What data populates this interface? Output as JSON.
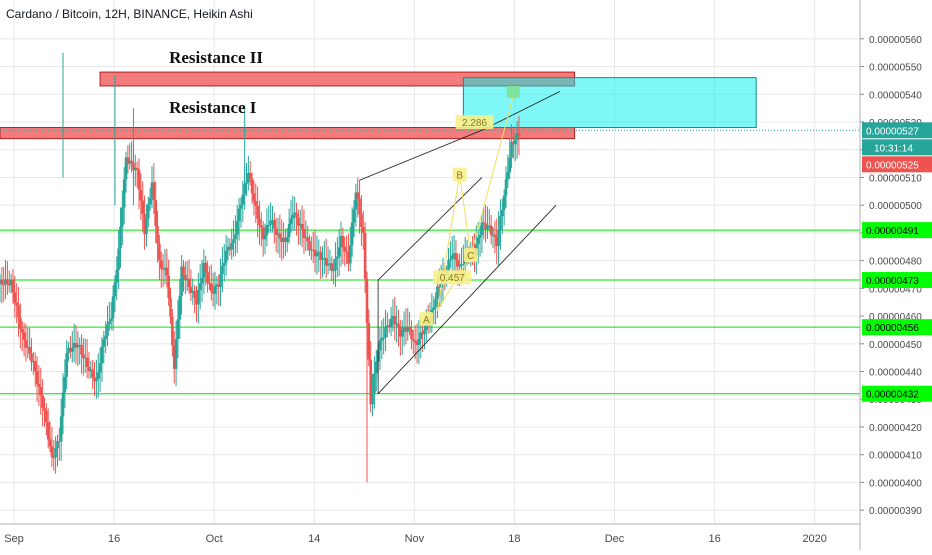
{
  "chart_data": {
    "type": "candlestick",
    "title": "Cardano / Bitcoin, 12H, BINANCE, Heikin Ashi",
    "x_ticks": [
      "Sep",
      "16",
      "Oct",
      "14",
      "Nov",
      "18",
      "Dec",
      "16",
      "2020"
    ],
    "y_ticks": [
      "0.00000560",
      "0.00000550",
      "0.00000540",
      "0.00000530",
      "0.00000520",
      "0.00000510",
      "0.00000500",
      "0.00000490",
      "0.00000480",
      "0.00000470",
      "0.00000460",
      "0.00000450",
      "0.00000440",
      "0.00000430",
      "0.00000420",
      "0.00000410",
      "0.00000400",
      "0.00000390"
    ],
    "y_tick_values": [
      5.6,
      5.5,
      5.4,
      5.3,
      5.2,
      5.1,
      5.0,
      4.9,
      4.8,
      4.7,
      4.6,
      4.5,
      4.4,
      4.3,
      4.2,
      4.1,
      4.0,
      3.9
    ],
    "ylim": [
      3.85,
      5.74
    ],
    "xlim": [
      0,
      232
    ],
    "y_unit_note": "values x 1e-6 BTC",
    "candle_anchors": [
      [
        0,
        4.72
      ],
      [
        3,
        4.7
      ],
      [
        6,
        4.52
      ],
      [
        9,
        4.44
      ],
      [
        12,
        4.27
      ],
      [
        14,
        4.09
      ],
      [
        16,
        4.15
      ],
      [
        18,
        4.45
      ],
      [
        21,
        4.49
      ],
      [
        24,
        4.42
      ],
      [
        26,
        4.38
      ],
      [
        28,
        4.53
      ],
      [
        30,
        4.6
      ],
      [
        32,
        4.82
      ],
      [
        34,
        5.15
      ],
      [
        37,
        5.12
      ],
      [
        39,
        4.92
      ],
      [
        41,
        5.1
      ],
      [
        43,
        4.8
      ],
      [
        45,
        4.75
      ],
      [
        47,
        4.4
      ],
      [
        49,
        4.75
      ],
      [
        51,
        4.7
      ],
      [
        53,
        4.66
      ],
      [
        55,
        4.8
      ],
      [
        57,
        4.7
      ],
      [
        59,
        4.72
      ],
      [
        61,
        4.82
      ],
      [
        63,
        4.85
      ],
      [
        65,
        5.0
      ],
      [
        67,
        5.12
      ],
      [
        69,
        5.0
      ],
      [
        71,
        4.9
      ],
      [
        73,
        4.96
      ],
      [
        75,
        4.88
      ],
      [
        77,
        4.85
      ],
      [
        79,
        4.96
      ],
      [
        81,
        4.92
      ],
      [
        84,
        4.85
      ],
      [
        86,
        4.84
      ],
      [
        88,
        4.8
      ],
      [
        90,
        4.76
      ],
      [
        92,
        4.86
      ],
      [
        94,
        4.78
      ],
      [
        96,
        5.05
      ],
      [
        98,
        4.9
      ],
      [
        100,
        4.3
      ],
      [
        102,
        4.5
      ],
      [
        104,
        4.55
      ],
      [
        106,
        4.58
      ],
      [
        108,
        4.52
      ],
      [
        110,
        4.55
      ],
      [
        112,
        4.5
      ],
      [
        114,
        4.56
      ],
      [
        116,
        4.6
      ],
      [
        118,
        4.7
      ],
      [
        120,
        4.74
      ],
      [
        122,
        4.81
      ],
      [
        124,
        4.76
      ],
      [
        126,
        4.82
      ],
      [
        128,
        4.84
      ],
      [
        130,
        4.95
      ],
      [
        132,
        4.93
      ],
      [
        134,
        4.86
      ],
      [
        136,
        5.02
      ],
      [
        138,
        5.2
      ],
      [
        140,
        5.25
      ]
    ],
    "horizontal_levels": [
      {
        "price": 4.91,
        "label": "0.00000491"
      },
      {
        "price": 4.73,
        "label": "0.00000473"
      },
      {
        "price": 4.56,
        "label": "0.00000456"
      },
      {
        "price": 4.32,
        "label": "0.00000432"
      }
    ],
    "zones": [
      {
        "name": "Resistance II",
        "x0": 27,
        "x1": 155,
        "y_low": 5.43,
        "y_high": 5.48,
        "color": "#f26d6d"
      },
      {
        "name": "Resistance I",
        "x0": 0,
        "x1": 155,
        "y_low": 5.24,
        "y_high": 5.28,
        "color": "#f26d6d"
      },
      {
        "name": "",
        "x0": 125,
        "x1": 204,
        "y_low": 5.28,
        "y_high": 5.46,
        "color": "#00f0f0"
      }
    ],
    "last_price": {
      "price": 5.27,
      "label": "0.00000527",
      "countdown": "10:31:14"
    },
    "prev_price": {
      "price": 5.25,
      "label": "0.00000525"
    },
    "pattern_labels": [
      {
        "text": "A",
        "x": 115,
        "y": 4.59
      },
      {
        "text": "0.457",
        "x": 122,
        "y": 4.74
      },
      {
        "text": "C",
        "x": 127,
        "y": 4.82
      },
      {
        "text": "B",
        "x": 124,
        "y": 5.11
      },
      {
        "text": "2.286",
        "x": 128,
        "y": 5.3
      }
    ],
    "colors": {
      "up": "#26a69a",
      "down": "#ef5350",
      "level": "#00e600",
      "level_label_bg": "#00ff00",
      "grid": "#e8e8e8",
      "axis_text": "#4a4a4a",
      "pattern": "#f0e060",
      "last_bg": "#26a69a",
      "prev_bg": "#ef5350"
    }
  }
}
